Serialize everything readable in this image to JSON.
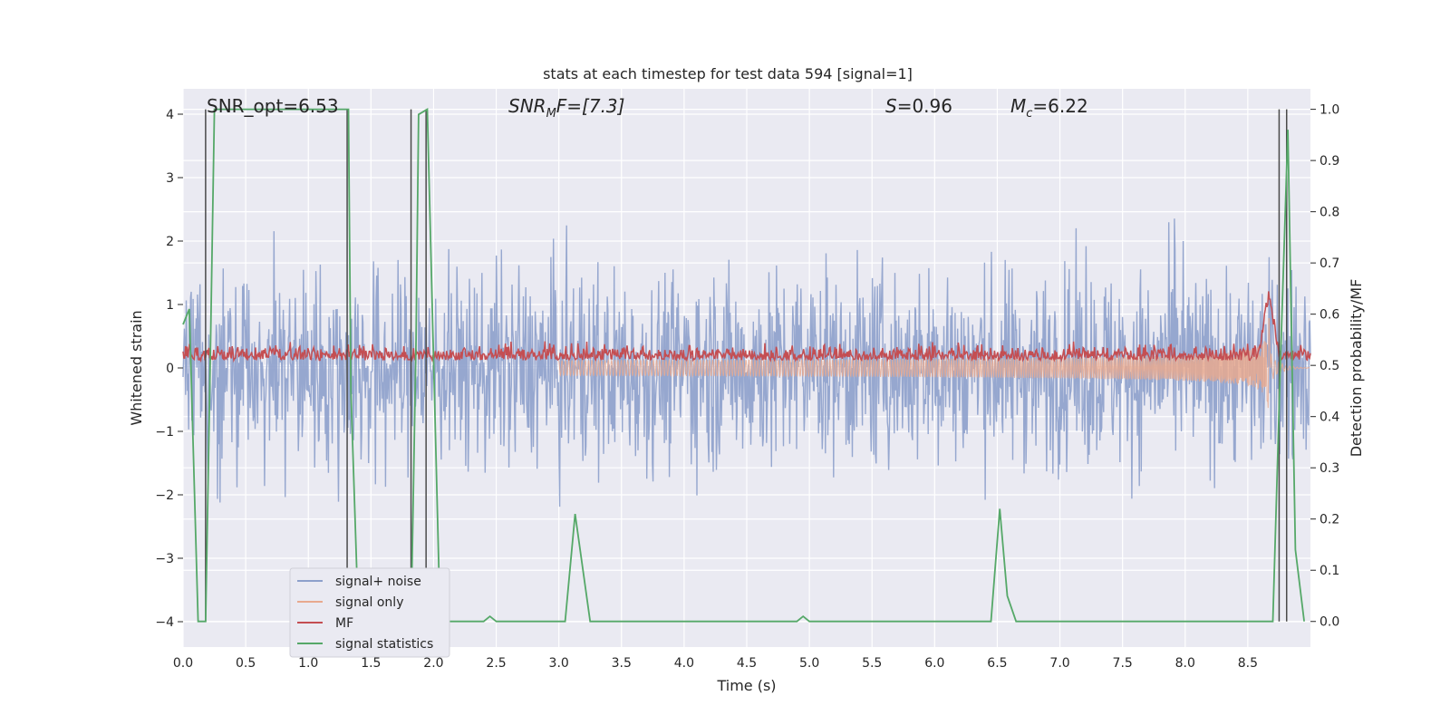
{
  "chart_data": {
    "type": "line",
    "title": "stats at each timestep for test data 594 [signal=1]",
    "xlabel": "Time (s)",
    "ylabel": "Whitened strain",
    "ylabel_right": "Detection probability/MF",
    "xlim": [
      0.0,
      9.0
    ],
    "ylim": [
      -4.4,
      4.4
    ],
    "ylim_right": [
      -0.05,
      1.04
    ],
    "x_ticks": [
      "0.0",
      "0.5",
      "1.0",
      "1.5",
      "2.0",
      "2.5",
      "3.0",
      "3.5",
      "4.0",
      "4.5",
      "5.0",
      "5.5",
      "6.0",
      "6.5",
      "7.0",
      "7.5",
      "8.0",
      "8.5"
    ],
    "y_ticks": [
      "4",
      "3",
      "2",
      "1",
      "0",
      "−1",
      "−2",
      "−3",
      "−4"
    ],
    "y_right_ticks": [
      "1.0",
      "0.9",
      "0.8",
      "0.7",
      "0.6",
      "0.5",
      "0.4",
      "0.3",
      "0.2",
      "0.1",
      "0.0"
    ],
    "grid": true,
    "legend_position": "lower-left",
    "annotations": {
      "snr_opt": "SNR_opt=6.53",
      "snr_mf_main": "SNR",
      "snr_mf_sub": "M",
      "snr_mf_rest": "F=[7.3]",
      "s_main": "S",
      "s_rest": "=0.96",
      "mc_main": "M",
      "mc_sub": "c",
      "mc_rest": "=6.22"
    },
    "series": [
      {
        "name": "signal+ noise",
        "color": "#8da0cb",
        "envelope_amplitude": 2.5
      },
      {
        "name": "signal only",
        "color": "#e8a98f",
        "chirp_peak_time": 8.67,
        "chirp_peak_amplitude": 0.8
      },
      {
        "name": "MF",
        "color": "#c44e52",
        "baseline": 0.51,
        "peak_time": 8.67,
        "peak_value": 0.63
      },
      {
        "name": "signal statistics",
        "color": "#55a868",
        "x": [
          0.0,
          0.05,
          0.12,
          0.18,
          0.22,
          0.25,
          1.32,
          1.34,
          1.4,
          1.82,
          1.86,
          1.88,
          1.95,
          2.05,
          2.1,
          2.4,
          2.45,
          2.5,
          3.05,
          3.13,
          3.25,
          4.9,
          4.95,
          5.0,
          6.45,
          6.52,
          6.58,
          6.65,
          8.7,
          8.76,
          8.82,
          8.88,
          8.95
        ],
        "y": [
          0.58,
          0.61,
          0.0,
          0.0,
          0.55,
          1.0,
          1.0,
          0.45,
          0.0,
          0.0,
          0.55,
          0.99,
          1.0,
          0.02,
          0.0,
          0.0,
          0.01,
          0.0,
          0.0,
          0.21,
          0.0,
          0.0,
          0.01,
          0.0,
          0.0,
          0.22,
          0.05,
          0.0,
          0.0,
          0.5,
          0.96,
          0.14,
          0.0
        ]
      }
    ],
    "vertical_markers_s": [
      0.18,
      1.31,
      1.82,
      1.94,
      8.75,
      8.81
    ]
  },
  "legend": {
    "items": [
      "signal+ noise",
      "signal only",
      "MF",
      "signal statistics"
    ]
  }
}
